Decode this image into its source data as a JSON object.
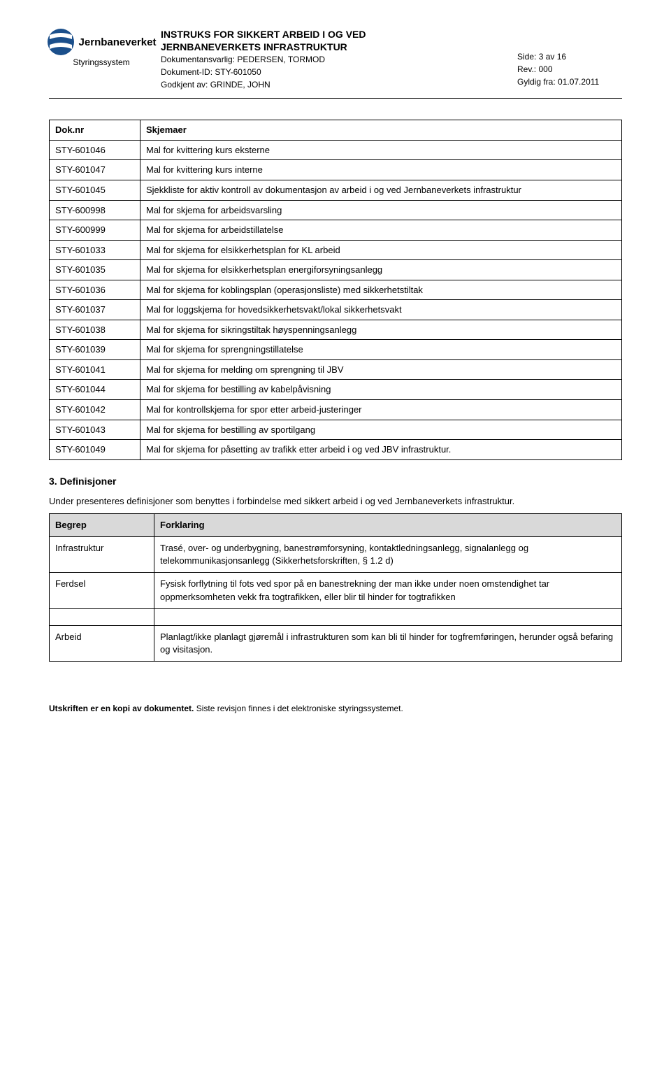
{
  "header": {
    "logo_text": "Jernbaneverket",
    "styringssystem": "Styringssystem",
    "title_line1": "INSTRUKS FOR SIKKERT ARBEID I OG VED",
    "title_line2": "JERNBANEVERKETS INFRASTRUKTUR",
    "doc_owner_label": "Dokumentansvarlig:",
    "doc_owner": "PEDERSEN, TORMOD",
    "doc_id_label": "Dokument-ID:",
    "doc_id": "STY-601050",
    "approved_label": "Godkjent av:",
    "approved_by": "GRINDE, JOHN",
    "side_label": "Side:",
    "side": "3 av 16",
    "rev_label": "Rev.:",
    "rev": "000",
    "valid_label": "Gyldig fra:",
    "valid_from": "01.07.2011"
  },
  "table1": {
    "col1_header": "Dok.nr",
    "col2_header": "Skjemaer",
    "rows": [
      {
        "id": "STY-601046",
        "desc": "Mal for kvittering kurs eksterne"
      },
      {
        "id": "STY-601047",
        "desc": "Mal for kvittering kurs interne"
      },
      {
        "id": "STY-601045",
        "desc": "Sjekkliste for aktiv kontroll av dokumentasjon av arbeid i og ved Jernbaneverkets infrastruktur"
      },
      {
        "id": "STY-600998",
        "desc": "Mal for skjema for arbeidsvarsling"
      },
      {
        "id": "STY-600999",
        "desc": "Mal for skjema for arbeidstillatelse"
      },
      {
        "id": "STY-601033",
        "desc": "Mal for skjema for elsikkerhetsplan for KL arbeid"
      },
      {
        "id": "STY-601035",
        "desc": "Mal for skjema for elsikkerhetsplan energiforsyningsanlegg"
      },
      {
        "id": "STY-601036",
        "desc": "Mal for skjema for koblingsplan (operasjonsliste) med sikkerhetstiltak"
      },
      {
        "id": "STY-601037",
        "desc": "Mal for loggskjema for hovedsikkerhetsvakt/lokal sikkerhetsvakt"
      },
      {
        "id": "STY-601038",
        "desc": "Mal for skjema for sikringstiltak høyspenningsanlegg"
      },
      {
        "id": "STY-601039",
        "desc": "Mal for skjema for sprengningstillatelse"
      },
      {
        "id": "STY-601041",
        "desc": "Mal for skjema for melding om sprengning til JBV"
      },
      {
        "id": "STY-601044",
        "desc": "Mal for skjema for bestilling av kabelpåvisning"
      },
      {
        "id": "STY-601042",
        "desc": "Mal for kontrollskjema for spor etter arbeid-justeringer"
      },
      {
        "id": "STY-601043",
        "desc": "Mal for skjema for bestilling av sportilgang"
      },
      {
        "id": "STY-601049",
        "desc": "Mal for skjema for påsetting av trafikk etter arbeid i og ved JBV infrastruktur."
      }
    ]
  },
  "section3": {
    "heading": "3. Definisjoner",
    "intro": "Under presenteres definisjoner som benyttes i forbindelse med sikkert arbeid i og ved Jernbaneverkets infrastruktur."
  },
  "def_table": {
    "col1_header": "Begrep",
    "col2_header": "Forklaring",
    "rows": [
      {
        "term": "Infrastruktur",
        "desc": "Trasé, over- og underbygning, banestrømforsyning, kontaktledningsanlegg, signalanlegg og telekommunikasjonsanlegg (Sikkerhetsforskriften, § 1.2 d)"
      },
      {
        "term": "Ferdsel",
        "desc": "Fysisk forflytning til fots ved spor på en banestrekning der man ikke under noen omstendighet tar oppmerksomheten vekk fra togtrafikken, eller blir til hinder for togtrafikken"
      },
      {
        "term": "Arbeid",
        "desc": "Planlagt/ikke planlagt gjøremål i infrastrukturen som kan bli til hinder for togfremføringen, herunder også befaring og visitasjon."
      }
    ]
  },
  "footer": {
    "bold": "Utskriften er en kopi av dokumentet.",
    "rest": " Siste revisjon finnes i det elektroniske styringssystemet."
  },
  "colors": {
    "logo_color": "#1b4f8b",
    "header_bg": "#d9d9d9",
    "text": "#000000",
    "background": "#ffffff"
  }
}
